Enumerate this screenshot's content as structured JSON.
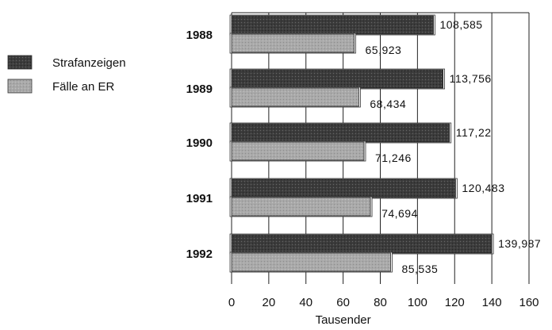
{
  "chart_data": {
    "type": "bar",
    "orientation": "horizontal",
    "categories": [
      "1988",
      "1989",
      "1990",
      "1991",
      "1992"
    ],
    "series": [
      {
        "name": "Strafanzeigen",
        "color": "#3a3a3a",
        "values": [
          108.585,
          113.756,
          117.22,
          120.483,
          139.987
        ],
        "labels": [
          "108,585",
          "113,756",
          "117,22",
          "120,483",
          "139,987"
        ]
      },
      {
        "name": "Fälle an ER",
        "color": "#a8a8a8",
        "values": [
          65.923,
          68.434,
          71.246,
          74.694,
          85.535
        ],
        "labels": [
          "65,923",
          "68,434",
          "71,246",
          "74,694",
          "85,535"
        ]
      }
    ],
    "xlim": [
      0,
      160
    ],
    "xticks": [
      0,
      20,
      40,
      60,
      80,
      100,
      120,
      140,
      160
    ],
    "xlabel": "Tausender",
    "ylabel": "",
    "title": "",
    "grid": "vertical",
    "legend_position": "left"
  }
}
